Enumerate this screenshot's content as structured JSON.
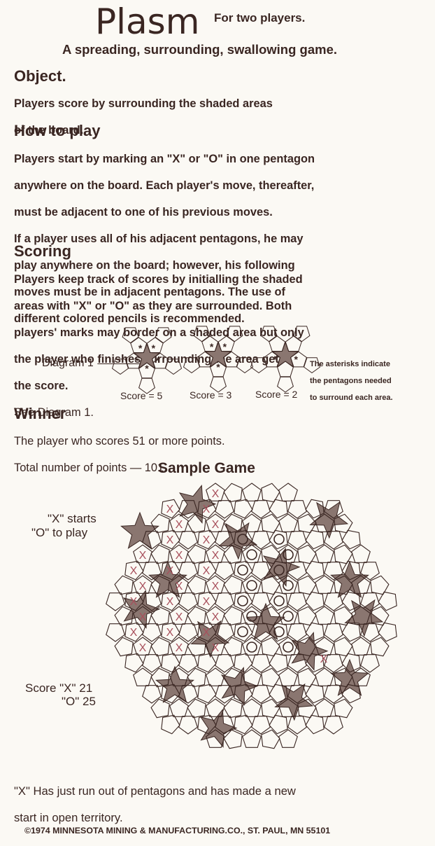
{
  "header": {
    "title": "Plasm",
    "subtitle": "For two players.",
    "tagline": "A spreading, surrounding, swallowing game."
  },
  "object": {
    "heading": "Object.",
    "lines": [
      "Players score by surrounding the shaded areas",
      "of the board."
    ]
  },
  "how_to_play": {
    "heading": "How to play",
    "lines": [
      "Players start by marking an \"X\" or \"O\" in one pentagon",
      "anywhere on the board. Each player's move, thereafter,",
      "must be adjacent to one of his previous moves.",
      "If a player uses all of his adjacent pentagons, he may",
      "play anywhere on the board; however, his following",
      "moves must be in adjacent pentagons. The use of",
      "different colored pencils is recommended."
    ]
  },
  "scoring": {
    "heading": "Scoring",
    "line1": "Players keep track of scores by initialling the shaded",
    "line2": "areas with \"X\" or \"O\" as they are surrounded. Both",
    "line3": "players' marks may border on a shaded area but only",
    "line4_pre": "the player who ",
    "line4_u": "finishes",
    "line4_post": " surrounding the area gets",
    "line5": "the score.",
    "line6": "See Diagram 1."
  },
  "diagram1": {
    "label": "Diagram 1",
    "scores": [
      "Score = 5",
      "Score = 3",
      "Score = 2"
    ],
    "note_lines": [
      "The asterisks indicate",
      "the pentagons needed",
      "to surround each area."
    ],
    "marks": [
      "*",
      "*",
      "*",
      "*",
      "*",
      "*",
      "*",
      "*",
      "*",
      "*"
    ]
  },
  "winner": {
    "heading": "Winner",
    "line1": "The player who scores 51 or more points.",
    "line2": "Total number of points — 101."
  },
  "sample": {
    "heading": "Sample Game",
    "starts_line1": "\"X\" starts",
    "starts_line2": "\"O\" to play",
    "score_x": "Score \"X\" 21",
    "score_o": "\"O\" 25",
    "x_mark": "X",
    "footnote_line1": "\"X\" Has just run out of pentagons and has made a new",
    "footnote_line2": "start in open territory."
  },
  "footer": {
    "copyright": "©1974 MINNESOTA MINING & MANUFACTURING.CO., ST. PAUL, MN 55101"
  },
  "colors": {
    "ink": "#3a2622",
    "paper": "#fbf9f4",
    "shade": "#8a7670",
    "x_mark": "#a8505c"
  }
}
